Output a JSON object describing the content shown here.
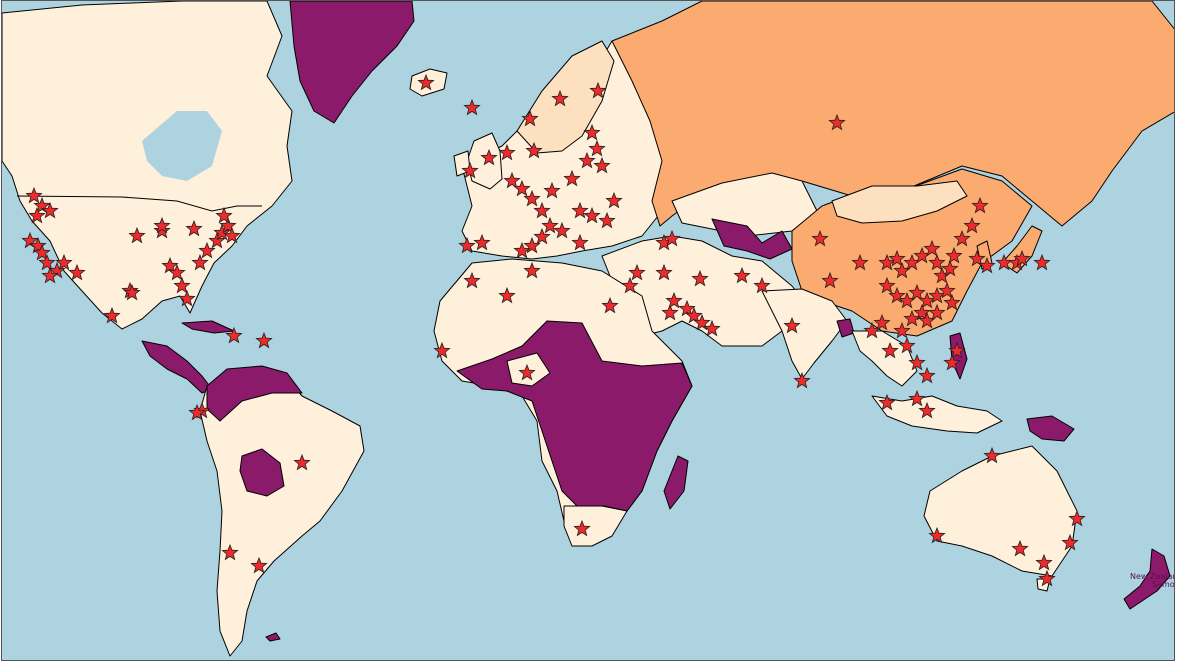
{
  "map": {
    "colors": {
      "ocean": "#acd3df",
      "low": "#fff0dc",
      "low_mid": "#fde0c0",
      "mid": "#fcab70",
      "high": "#8b1a6a",
      "marker": "#ee2a2a",
      "marker_stroke": "#222222",
      "border": "#000000"
    },
    "labels": {
      "new_zealand": "New Zealand",
      "samoa": "Samoa"
    },
    "icons": {
      "marker": "star-icon"
    }
  }
}
